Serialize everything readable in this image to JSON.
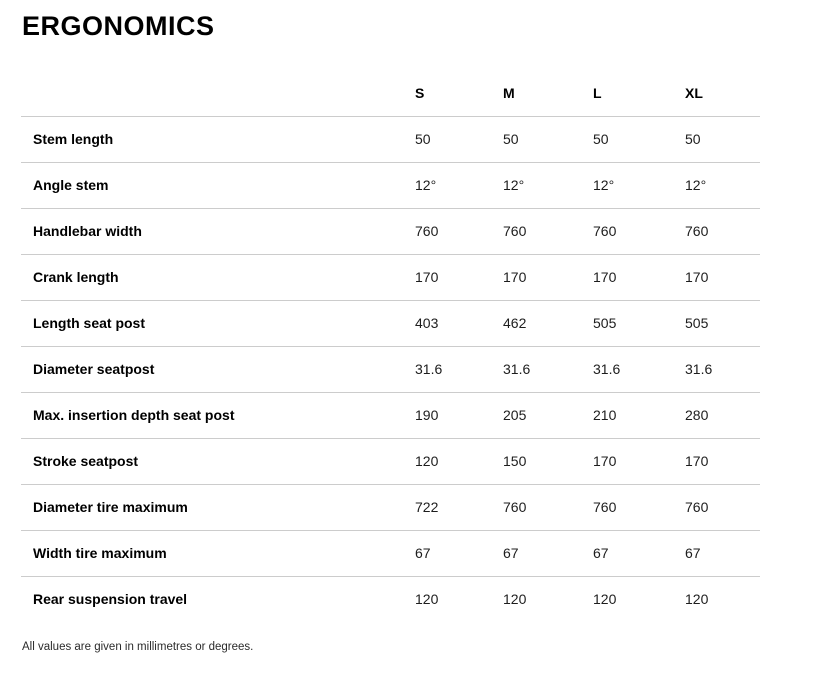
{
  "page": {
    "title": "ERGONOMICS",
    "footnote": "All values are given in millimetres or degrees."
  },
  "table": {
    "columns": [
      "S",
      "M",
      "L",
      "XL"
    ],
    "rows": [
      {
        "label": "Stem length",
        "values": [
          "50",
          "50",
          "50",
          "50"
        ]
      },
      {
        "label": "Angle stem",
        "values": [
          "12°",
          "12°",
          "12°",
          "12°"
        ]
      },
      {
        "label": "Handlebar width",
        "values": [
          "760",
          "760",
          "760",
          "760"
        ]
      },
      {
        "label": "Crank length",
        "values": [
          "170",
          "170",
          "170",
          "170"
        ]
      },
      {
        "label": "Length seat post",
        "values": [
          "403",
          "462",
          "505",
          "505"
        ]
      },
      {
        "label": "Diameter seatpost",
        "values": [
          "31.6",
          "31.6",
          "31.6",
          "31.6"
        ]
      },
      {
        "label": "Max. insertion depth seat post",
        "values": [
          "190",
          "205",
          "210",
          "280"
        ]
      },
      {
        "label": "Stroke seatpost",
        "values": [
          "120",
          "150",
          "170",
          "170"
        ]
      },
      {
        "label": "Diameter tire maximum",
        "values": [
          "722",
          "760",
          "760",
          "760"
        ]
      },
      {
        "label": "Width tire maximum",
        "values": [
          "67",
          "67",
          "67",
          "67"
        ]
      },
      {
        "label": "Rear suspension travel",
        "values": [
          "120",
          "120",
          "120",
          "120"
        ]
      }
    ]
  },
  "colors": {
    "divider": "#cccccc",
    "text": "#1d1d1d"
  }
}
